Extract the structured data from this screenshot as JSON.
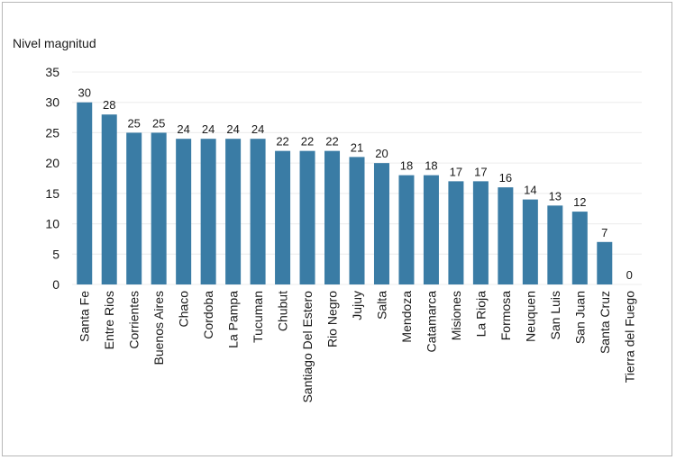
{
  "chart_data": {
    "type": "bar",
    "title": "",
    "ylabel": "Nivel magnitud",
    "xlabel": "",
    "ylim": [
      0,
      35
    ],
    "yticks": [
      0,
      5,
      10,
      15,
      20,
      25,
      30,
      35
    ],
    "grid": true,
    "bar_color": "#3a7ca5",
    "categories": [
      "Santa Fe",
      "Entre Rios",
      "Corrientes",
      "Buenos Aires",
      "Chaco",
      "Cordoba",
      "La Pampa",
      "Tucuman",
      "Chubut",
      "Santiago Del Estero",
      "Rio Negro",
      "Jujuy",
      "Salta",
      "Mendoza",
      "Catamarca",
      "Misiones",
      "La Rioja",
      "Formosa",
      "Neuquen",
      "San Luis",
      "San Juan",
      "Santa Cruz",
      "Tierra del Fuego"
    ],
    "values": [
      30,
      28,
      25,
      25,
      24,
      24,
      24,
      24,
      22,
      22,
      22,
      21,
      20,
      18,
      18,
      17,
      17,
      16,
      14,
      13,
      12,
      7,
      0
    ]
  }
}
